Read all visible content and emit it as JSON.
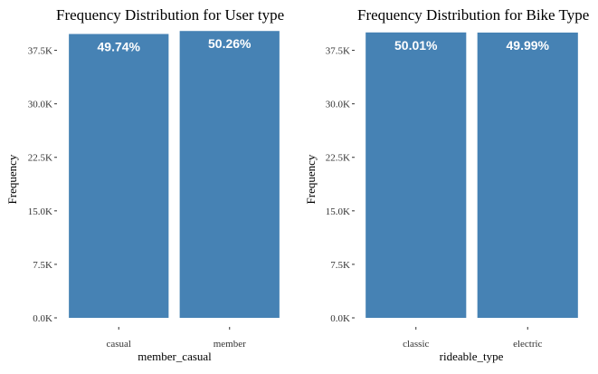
{
  "chart_data": [
    {
      "type": "bar",
      "title": "Frequency Distribution for User type",
      "xlabel": "member_casual",
      "ylabel": "Frequency",
      "categories": [
        "casual",
        "member"
      ],
      "values": [
        39790,
        40210
      ],
      "data_labels": [
        "49.74%",
        "50.26%"
      ],
      "ylim": [
        0,
        41000
      ],
      "yticks": [
        0,
        7500,
        15000,
        22500,
        30000,
        37500
      ],
      "ytick_labels": [
        "0.0K",
        "7.5K",
        "15.0K",
        "22.5K",
        "30.0K",
        "37.5K"
      ],
      "bar_color": "#4682B4",
      "grid": false,
      "legend": false
    },
    {
      "type": "bar",
      "title": "Frequency Distribution for Bike Type",
      "xlabel": "rideable_type",
      "ylabel": "Frequency",
      "categories": [
        "classic",
        "electric"
      ],
      "values": [
        40010,
        39990
      ],
      "data_labels": [
        "50.01%",
        "49.99%"
      ],
      "ylim": [
        0,
        41000
      ],
      "yticks": [
        0,
        7500,
        15000,
        22500,
        30000,
        37500
      ],
      "ytick_labels": [
        "0.0K",
        "7.5K",
        "15.0K",
        "22.5K",
        "30.0K",
        "37.5K"
      ],
      "bar_color": "#4682B4",
      "grid": false,
      "legend": false
    }
  ]
}
